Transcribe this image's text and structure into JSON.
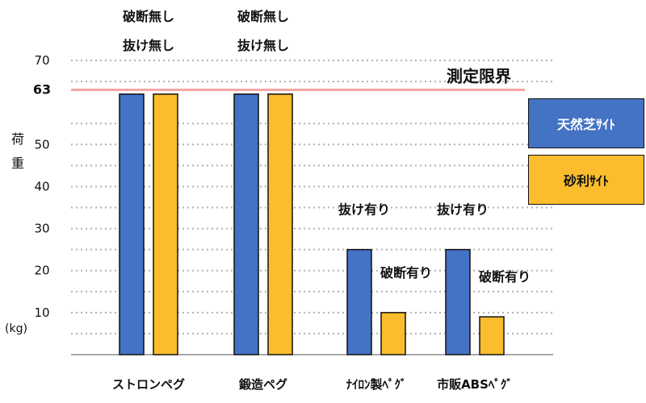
{
  "colors": {
    "blue": "#4472c4",
    "yellow": "#fbbd2d",
    "limit_line": "#f4a6a6",
    "grid": "#b0b0b0"
  },
  "chart_data": {
    "type": "bar",
    "title": "",
    "ylabel": "荷重",
    "yunit": "(kg)",
    "ylim": [
      0,
      70
    ],
    "yticks": [
      10,
      20,
      30,
      40,
      50,
      70
    ],
    "grid": true,
    "legend_position": "right",
    "limit": {
      "value": 63,
      "label": "測定限界"
    },
    "categories": [
      "ストロンペグ",
      "鍛造ペグ",
      "ﾅｲﾛﾝ製ﾍﾟｸﾞ",
      "市販ABSﾍﾟｸﾞ"
    ],
    "series": [
      {
        "name": "天然芝ｻｲﾄ",
        "color_key": "blue",
        "values": [
          62,
          62,
          25,
          25
        ]
      },
      {
        "name": "砂利ｻｲﾄ",
        "color_key": "yellow",
        "values": [
          62,
          62,
          10,
          9
        ]
      }
    ],
    "annotations": [
      {
        "category": 0,
        "series": "both",
        "lines": [
          "破断無し",
          "抜け無し"
        ]
      },
      {
        "category": 1,
        "series": "both",
        "lines": [
          "破断無し",
          "抜け無し"
        ]
      },
      {
        "category": 2,
        "series": 0,
        "lines": [
          "抜け有り"
        ]
      },
      {
        "category": 2,
        "series": 1,
        "lines": [
          "破断有り"
        ]
      },
      {
        "category": 3,
        "series": 0,
        "lines": [
          "抜け有り"
        ]
      },
      {
        "category": 3,
        "series": 1,
        "lines": [
          "破断有り"
        ]
      }
    ]
  }
}
